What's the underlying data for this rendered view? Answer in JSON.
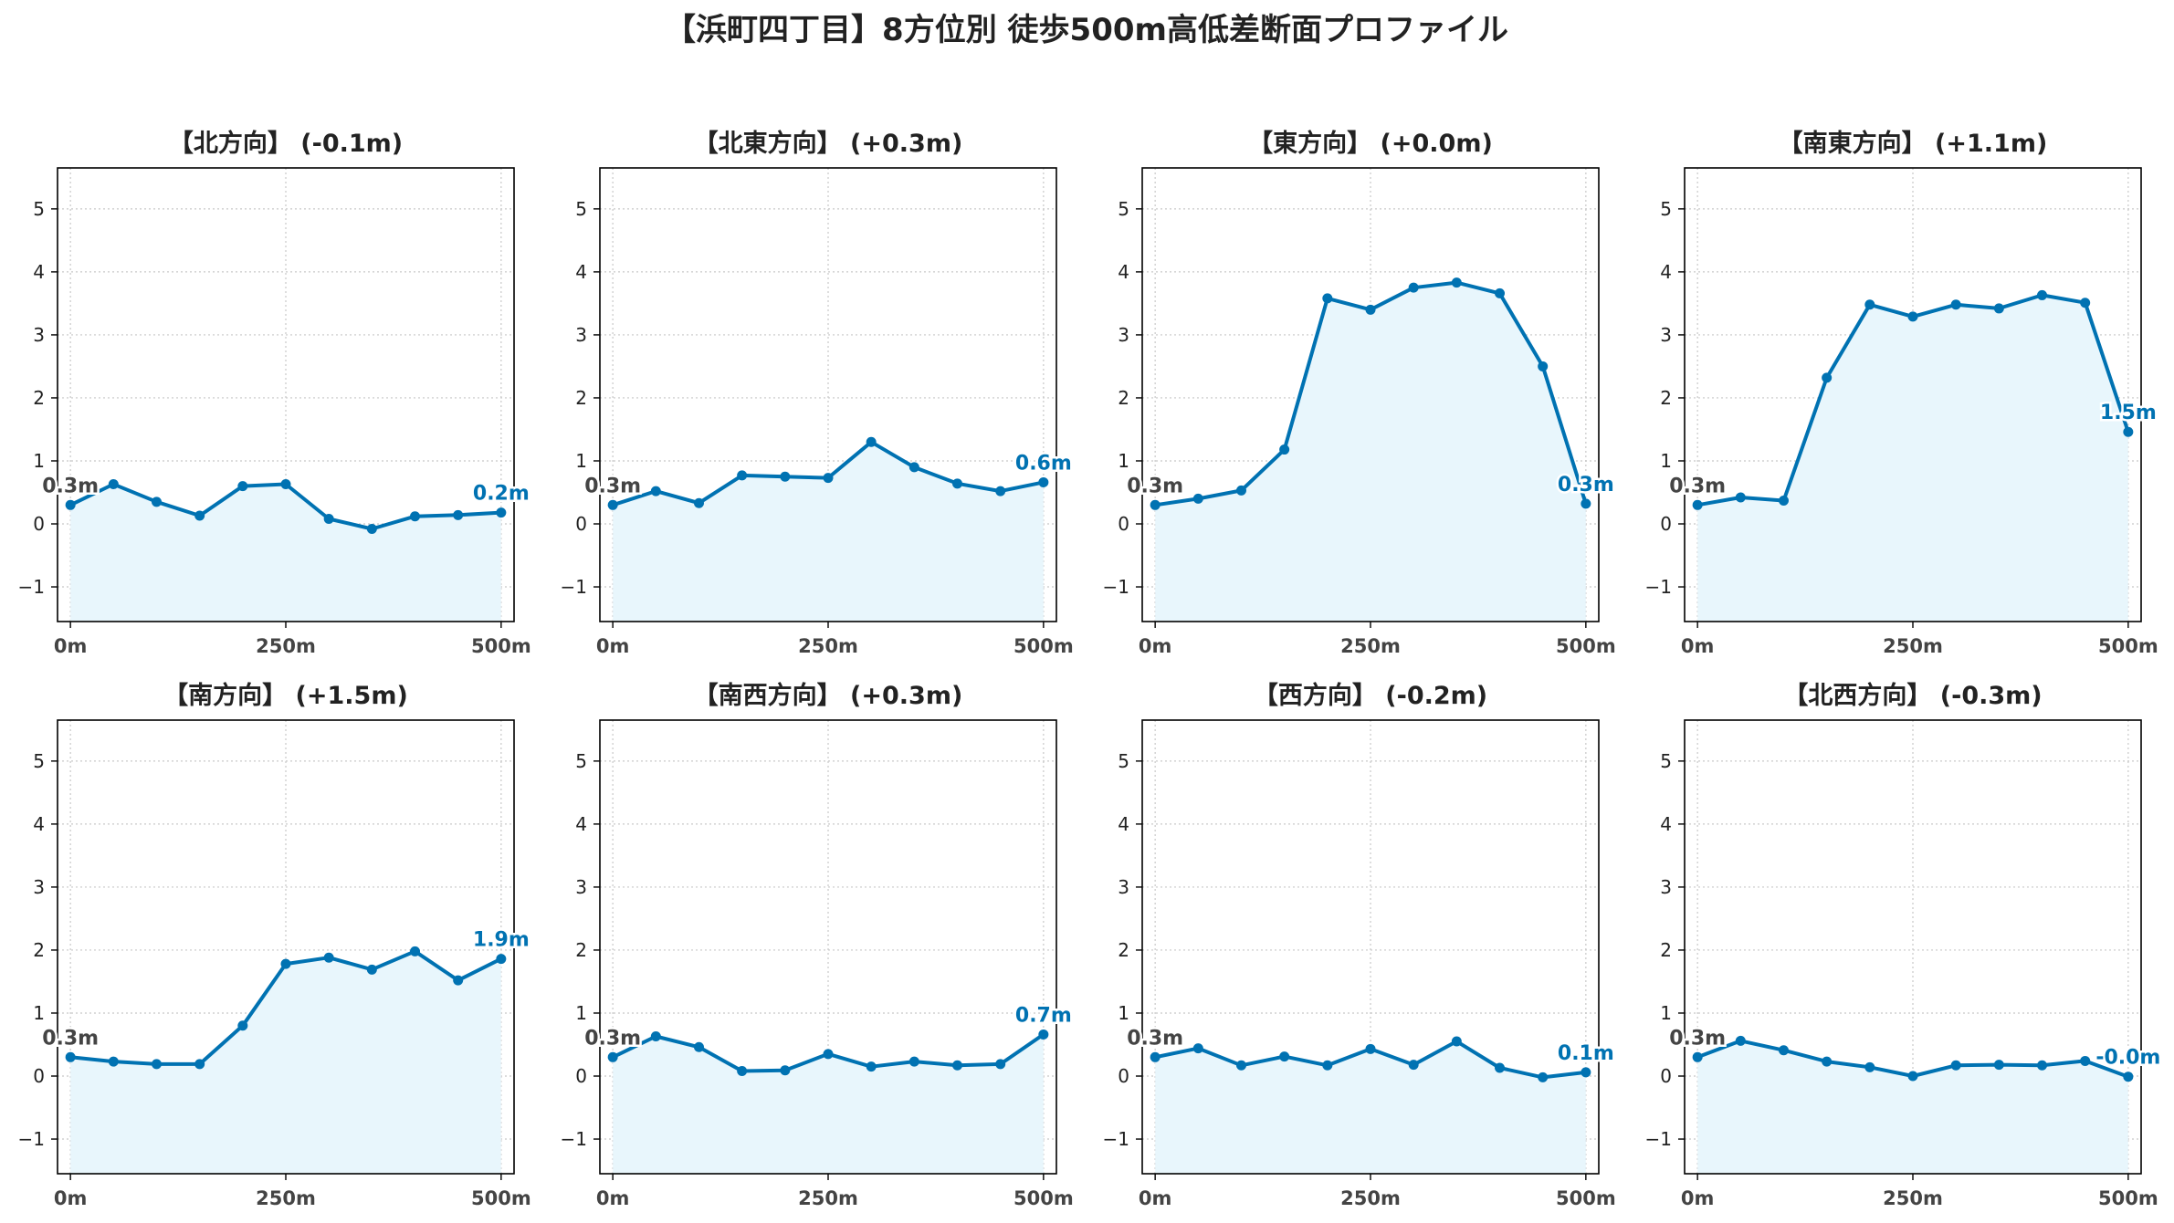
{
  "page_title": "【浜町四丁目】8方位別 徒歩500m高低差断面プロファイル",
  "colors": {
    "line": "#0072b2",
    "fill": "#e8f6fc",
    "grid": "#c8c8c8",
    "start_label": "#444444",
    "end_label": "#0072b2"
  },
  "chart_data": [
    {
      "type": "line",
      "title": "【北方向】 (-0.1m)",
      "x": [
        0,
        50,
        100,
        150,
        200,
        250,
        300,
        350,
        400,
        450,
        500
      ],
      "values": [
        0.3,
        0.63,
        0.35,
        0.13,
        0.6,
        0.63,
        0.08,
        -0.08,
        0.12,
        0.14,
        0.18
      ],
      "xticks": [
        "0m",
        "250m",
        "500m"
      ],
      "yticks": [
        "−1",
        "0",
        "1",
        "2",
        "3",
        "4",
        "5"
      ],
      "ylim": [
        -1.55,
        5.65
      ],
      "xlim": [
        -15,
        515
      ],
      "start_label": "0.3m",
      "end_label": "0.2m",
      "grid": true
    },
    {
      "type": "line",
      "title": "【北東方向】 (+0.3m)",
      "x": [
        0,
        50,
        100,
        150,
        200,
        250,
        300,
        350,
        400,
        450,
        500
      ],
      "values": [
        0.3,
        0.52,
        0.33,
        0.77,
        0.75,
        0.73,
        1.3,
        0.9,
        0.64,
        0.52,
        0.66
      ],
      "xticks": [
        "0m",
        "250m",
        "500m"
      ],
      "yticks": [
        "−1",
        "0",
        "1",
        "2",
        "3",
        "4",
        "5"
      ],
      "ylim": [
        -1.55,
        5.65
      ],
      "xlim": [
        -15,
        515
      ],
      "start_label": "0.3m",
      "end_label": "0.6m",
      "grid": true
    },
    {
      "type": "line",
      "title": "【東方向】 (+0.0m)",
      "x": [
        0,
        50,
        100,
        150,
        200,
        250,
        300,
        350,
        400,
        450,
        500
      ],
      "values": [
        0.3,
        0.4,
        0.53,
        1.18,
        3.58,
        3.4,
        3.75,
        3.83,
        3.66,
        2.5,
        0.32
      ],
      "xticks": [
        "0m",
        "250m",
        "500m"
      ],
      "yticks": [
        "−1",
        "0",
        "1",
        "2",
        "3",
        "4",
        "5"
      ],
      "ylim": [
        -1.55,
        5.65
      ],
      "xlim": [
        -15,
        515
      ],
      "start_label": "0.3m",
      "end_label": "0.3m",
      "grid": true
    },
    {
      "type": "line",
      "title": "【南東方向】 (+1.1m)",
      "x": [
        0,
        50,
        100,
        150,
        200,
        250,
        300,
        350,
        400,
        450,
        500
      ],
      "values": [
        0.3,
        0.42,
        0.37,
        2.32,
        3.48,
        3.29,
        3.48,
        3.42,
        3.63,
        3.51,
        1.46
      ],
      "xticks": [
        "0m",
        "250m",
        "500m"
      ],
      "yticks": [
        "−1",
        "0",
        "1",
        "2",
        "3",
        "4",
        "5"
      ],
      "ylim": [
        -1.55,
        5.65
      ],
      "xlim": [
        -15,
        515
      ],
      "start_label": "0.3m",
      "end_label": "1.5m",
      "grid": true
    },
    {
      "type": "line",
      "title": "【南方向】 (+1.5m)",
      "x": [
        0,
        50,
        100,
        150,
        200,
        250,
        300,
        350,
        400,
        450,
        500
      ],
      "values": [
        0.3,
        0.23,
        0.19,
        0.19,
        0.8,
        1.78,
        1.88,
        1.69,
        1.98,
        1.52,
        1.86
      ],
      "xticks": [
        "0m",
        "250m",
        "500m"
      ],
      "yticks": [
        "−1",
        "0",
        "1",
        "2",
        "3",
        "4",
        "5"
      ],
      "ylim": [
        -1.55,
        5.65
      ],
      "xlim": [
        -15,
        515
      ],
      "start_label": "0.3m",
      "end_label": "1.9m",
      "grid": true
    },
    {
      "type": "line",
      "title": "【南西方向】 (+0.3m)",
      "x": [
        0,
        50,
        100,
        150,
        200,
        250,
        300,
        350,
        400,
        450,
        500
      ],
      "values": [
        0.3,
        0.63,
        0.46,
        0.08,
        0.09,
        0.35,
        0.15,
        0.23,
        0.17,
        0.19,
        0.66
      ],
      "xticks": [
        "0m",
        "250m",
        "500m"
      ],
      "yticks": [
        "−1",
        "0",
        "1",
        "2",
        "3",
        "4",
        "5"
      ],
      "ylim": [
        -1.55,
        5.65
      ],
      "xlim": [
        -15,
        515
      ],
      "start_label": "0.3m",
      "end_label": "0.7m",
      "grid": true
    },
    {
      "type": "line",
      "title": "【西方向】 (-0.2m)",
      "x": [
        0,
        50,
        100,
        150,
        200,
        250,
        300,
        350,
        400,
        450,
        500
      ],
      "values": [
        0.3,
        0.44,
        0.17,
        0.31,
        0.17,
        0.43,
        0.18,
        0.55,
        0.13,
        -0.02,
        0.06
      ],
      "xticks": [
        "0m",
        "250m",
        "500m"
      ],
      "yticks": [
        "−1",
        "0",
        "1",
        "2",
        "3",
        "4",
        "5"
      ],
      "ylim": [
        -1.55,
        5.65
      ],
      "xlim": [
        -15,
        515
      ],
      "start_label": "0.3m",
      "end_label": "0.1m",
      "grid": true
    },
    {
      "type": "line",
      "title": "【北西方向】 (-0.3m)",
      "x": [
        0,
        50,
        100,
        150,
        200,
        250,
        300,
        350,
        400,
        450,
        500
      ],
      "values": [
        0.3,
        0.56,
        0.41,
        0.23,
        0.14,
        0.0,
        0.17,
        0.18,
        0.17,
        0.24,
        -0.01
      ],
      "xticks": [
        "0m",
        "250m",
        "500m"
      ],
      "yticks": [
        "−1",
        "0",
        "1",
        "2",
        "3",
        "4",
        "5"
      ],
      "ylim": [
        -1.55,
        5.65
      ],
      "xlim": [
        -15,
        515
      ],
      "start_label": "0.3m",
      "end_label": "-0.0m",
      "grid": true
    }
  ]
}
